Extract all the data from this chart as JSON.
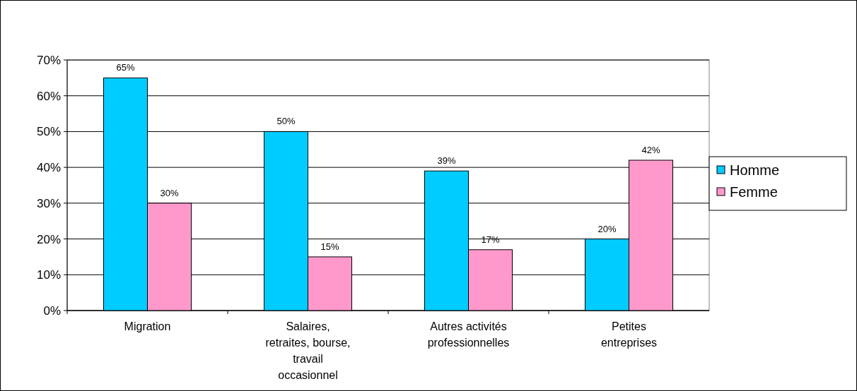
{
  "chart_data": {
    "type": "bar",
    "categories": [
      "Migration",
      "Salaires, retraites, bourse, travail occasionnel",
      "Autres activités professionnelles",
      "Petites entreprises"
    ],
    "series": [
      {
        "name": "Homme",
        "color": "#00ccff",
        "values": [
          65,
          50,
          39,
          20
        ],
        "value_labels": [
          "65%",
          "50%",
          "39%",
          "20%"
        ]
      },
      {
        "name": "Femme",
        "color": "#ff99cc",
        "values": [
          30,
          15,
          17,
          42
        ],
        "value_labels": [
          "30%",
          "15%",
          "17%",
          "42%"
        ]
      }
    ],
    "ylim": [
      0,
      70
    ],
    "yticks": [
      {
        "value": 0,
        "label": "0%"
      },
      {
        "value": 10,
        "label": "10%"
      },
      {
        "value": 20,
        "label": "20%"
      },
      {
        "value": 30,
        "label": "30%"
      },
      {
        "value": 40,
        "label": "40%"
      },
      {
        "value": 50,
        "label": "50%"
      },
      {
        "value": 60,
        "label": "60%"
      },
      {
        "value": 70,
        "label": "70%"
      }
    ],
    "grid": "y",
    "legend": "right"
  }
}
